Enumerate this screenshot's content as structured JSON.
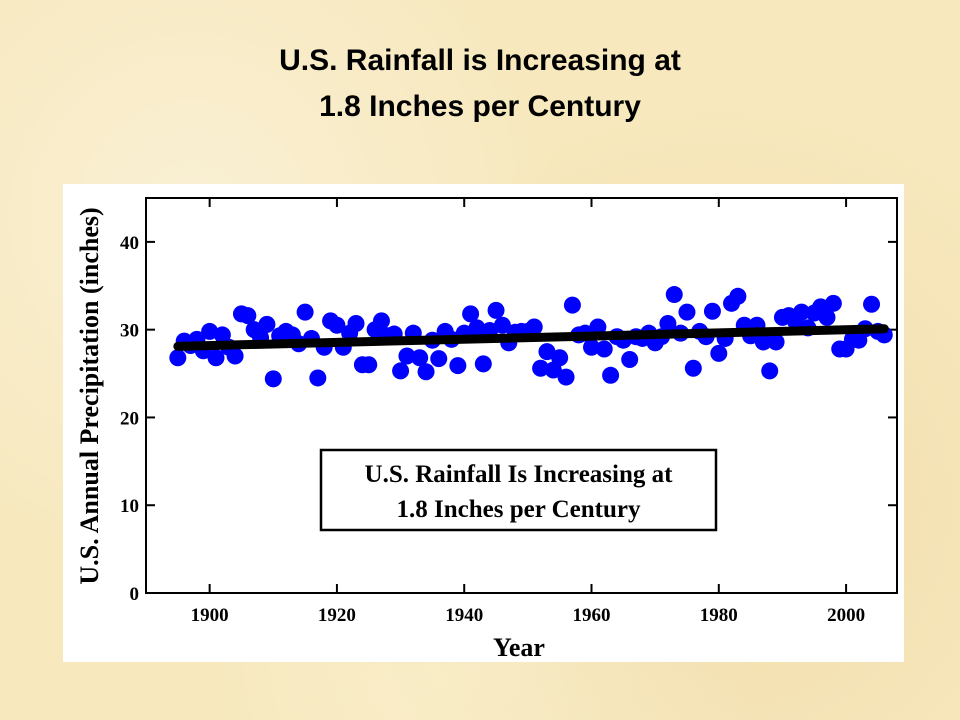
{
  "slide": {
    "title_line1": "U.S. Rainfall is Increasing at",
    "title_line2": "1.8 Inches per Century",
    "background_color": "#f7e8bd"
  },
  "chart_data": {
    "type": "scatter",
    "xlabel": "Year",
    "ylabel": "U.S. Annual Precipitation (inches)",
    "xlim": [
      1890,
      2008
    ],
    "ylim": [
      0,
      45
    ],
    "xticks": [
      1900,
      1920,
      1940,
      1960,
      1980,
      2000
    ],
    "yticks": [
      0,
      10,
      20,
      30,
      40
    ],
    "grid": false,
    "annotation": {
      "line1": "U.S. Rainfall Is Increasing at",
      "line2": "1.8 Inches per Century",
      "placement": "center"
    },
    "trend": {
      "x": [
        1895,
        2006
      ],
      "y": [
        28.1,
        30.1
      ],
      "color": "#000000"
    },
    "series": [
      {
        "color": "#0000ff",
        "points": [
          [
            1895,
            26.8
          ],
          [
            1896,
            28.7
          ],
          [
            1897,
            28.2
          ],
          [
            1898,
            28.9
          ],
          [
            1899,
            27.6
          ],
          [
            1900,
            29.8
          ],
          [
            1901,
            26.8
          ],
          [
            1902,
            29.4
          ],
          [
            1903,
            28.0
          ],
          [
            1904,
            27.0
          ],
          [
            1905,
            31.8
          ],
          [
            1906,
            31.6
          ],
          [
            1907,
            30.0
          ],
          [
            1908,
            29.1
          ],
          [
            1909,
            30.6
          ],
          [
            1910,
            24.4
          ],
          [
            1911,
            29.3
          ],
          [
            1912,
            29.8
          ],
          [
            1913,
            29.4
          ],
          [
            1914,
            28.4
          ],
          [
            1915,
            32.0
          ],
          [
            1916,
            29.0
          ],
          [
            1917,
            24.5
          ],
          [
            1918,
            28.0
          ],
          [
            1919,
            31.0
          ],
          [
            1920,
            30.5
          ],
          [
            1921,
            28.0
          ],
          [
            1922,
            29.6
          ],
          [
            1923,
            30.7
          ],
          [
            1924,
            26.0
          ],
          [
            1925,
            26.0
          ],
          [
            1926,
            30.0
          ],
          [
            1927,
            31.0
          ],
          [
            1928,
            29.3
          ],
          [
            1929,
            29.5
          ],
          [
            1930,
            25.3
          ],
          [
            1931,
            27.0
          ],
          [
            1932,
            29.6
          ],
          [
            1933,
            26.8
          ],
          [
            1934,
            25.2
          ],
          [
            1935,
            28.8
          ],
          [
            1936,
            26.7
          ],
          [
            1937,
            29.8
          ],
          [
            1938,
            28.9
          ],
          [
            1939,
            25.9
          ],
          [
            1940,
            29.6
          ],
          [
            1941,
            31.8
          ],
          [
            1942,
            30.2
          ],
          [
            1943,
            26.1
          ],
          [
            1944,
            29.9
          ],
          [
            1945,
            32.2
          ],
          [
            1946,
            30.5
          ],
          [
            1947,
            28.5
          ],
          [
            1948,
            29.7
          ],
          [
            1949,
            29.8
          ],
          [
            1950,
            29.8
          ],
          [
            1951,
            30.3
          ],
          [
            1952,
            25.6
          ],
          [
            1953,
            27.5
          ],
          [
            1954,
            25.4
          ],
          [
            1955,
            26.8
          ],
          [
            1956,
            24.6
          ],
          [
            1957,
            32.8
          ],
          [
            1958,
            29.4
          ],
          [
            1959,
            29.6
          ],
          [
            1960,
            28.0
          ],
          [
            1961,
            30.3
          ],
          [
            1962,
            27.8
          ],
          [
            1963,
            24.8
          ],
          [
            1964,
            29.2
          ],
          [
            1965,
            28.8
          ],
          [
            1966,
            26.6
          ],
          [
            1967,
            29.2
          ],
          [
            1968,
            29.0
          ],
          [
            1969,
            29.6
          ],
          [
            1970,
            28.5
          ],
          [
            1971,
            29.2
          ],
          [
            1972,
            30.7
          ],
          [
            1973,
            34.0
          ],
          [
            1974,
            29.6
          ],
          [
            1975,
            32.0
          ],
          [
            1976,
            25.6
          ],
          [
            1977,
            29.8
          ],
          [
            1978,
            29.2
          ],
          [
            1979,
            32.1
          ],
          [
            1980,
            27.3
          ],
          [
            1981,
            29.0
          ],
          [
            1982,
            33.0
          ],
          [
            1983,
            33.8
          ],
          [
            1984,
            30.5
          ],
          [
            1985,
            29.3
          ],
          [
            1986,
            30.5
          ],
          [
            1987,
            28.6
          ],
          [
            1988,
            25.3
          ],
          [
            1989,
            28.6
          ],
          [
            1990,
            31.4
          ],
          [
            1991,
            31.6
          ],
          [
            1992,
            31.0
          ],
          [
            1993,
            32.0
          ],
          [
            1994,
            30.2
          ],
          [
            1995,
            31.9
          ],
          [
            1996,
            32.6
          ],
          [
            1997,
            31.4
          ],
          [
            1998,
            33.0
          ],
          [
            1999,
            27.8
          ],
          [
            2000,
            27.8
          ],
          [
            2001,
            28.9
          ],
          [
            2002,
            28.8
          ],
          [
            2003,
            30.1
          ],
          [
            2004,
            32.9
          ],
          [
            2005,
            29.8
          ],
          [
            2006,
            29.4
          ]
        ]
      }
    ]
  }
}
